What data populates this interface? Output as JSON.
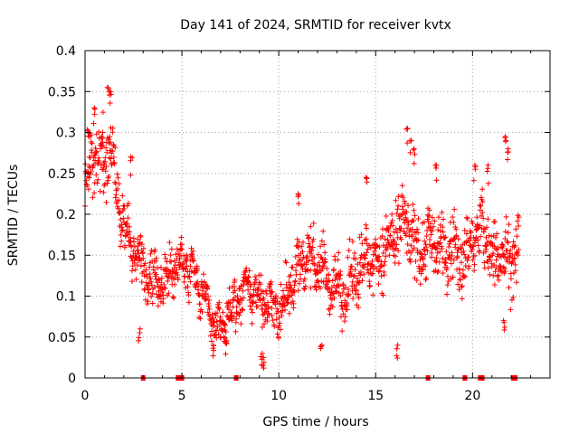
{
  "chart_data": {
    "type": "scatter",
    "title": "Day 141 of 2024, SRMTID for receiver kvtx",
    "xlabel": "GPS time / hours",
    "ylabel": "SRMTID / TECUs",
    "xlim": [
      0,
      24
    ],
    "ylim": [
      0,
      0.4
    ],
    "x_ticks": [
      0,
      5,
      10,
      15,
      20
    ],
    "x_tick_labels": [
      "0",
      "5",
      "10",
      "15",
      "20"
    ],
    "y_ticks": [
      0,
      0.05,
      0.1,
      0.15,
      0.2,
      0.25,
      0.3,
      0.35,
      0.4
    ],
    "y_tick_labels": [
      "0",
      "0.05",
      "0.1",
      "0.15",
      "0.2",
      "0.25",
      "0.3",
      "0.35",
      "0.4"
    ],
    "grid": true,
    "marker": "+",
    "color": "#ff0000",
    "series": [
      {
        "name": "SRMTID",
        "trend": [
          [
            0.0,
            0.24
          ],
          [
            0.3,
            0.26
          ],
          [
            0.6,
            0.27
          ],
          [
            1.0,
            0.26
          ],
          [
            1.3,
            0.28
          ],
          [
            1.7,
            0.21
          ],
          [
            2.2,
            0.17
          ],
          [
            2.7,
            0.15
          ],
          [
            3.2,
            0.13
          ],
          [
            3.7,
            0.12
          ],
          [
            4.2,
            0.12
          ],
          [
            4.7,
            0.14
          ],
          [
            5.2,
            0.14
          ],
          [
            5.7,
            0.12
          ],
          [
            6.2,
            0.09
          ],
          [
            6.6,
            0.07
          ],
          [
            7.0,
            0.06
          ],
          [
            7.5,
            0.08
          ],
          [
            8.0,
            0.1
          ],
          [
            8.5,
            0.11
          ],
          [
            9.0,
            0.1
          ],
          [
            9.5,
            0.09
          ],
          [
            10.0,
            0.08
          ],
          [
            10.5,
            0.11
          ],
          [
            11.0,
            0.13
          ],
          [
            11.5,
            0.15
          ],
          [
            12.0,
            0.14
          ],
          [
            12.5,
            0.12
          ],
          [
            13.0,
            0.11
          ],
          [
            13.5,
            0.11
          ],
          [
            14.0,
            0.13
          ],
          [
            14.5,
            0.15
          ],
          [
            15.0,
            0.14
          ],
          [
            15.5,
            0.16
          ],
          [
            16.0,
            0.17
          ],
          [
            16.5,
            0.19
          ],
          [
            17.0,
            0.16
          ],
          [
            17.5,
            0.16
          ],
          [
            18.0,
            0.17
          ],
          [
            18.5,
            0.15
          ],
          [
            19.0,
            0.16
          ],
          [
            19.5,
            0.14
          ],
          [
            20.0,
            0.17
          ],
          [
            20.5,
            0.18
          ],
          [
            21.0,
            0.15
          ],
          [
            21.5,
            0.15
          ],
          [
            22.0,
            0.14
          ],
          [
            22.4,
            0.16
          ]
        ],
        "spread": [
          [
            0.0,
            0.035
          ],
          [
            1.5,
            0.035
          ],
          [
            2.0,
            0.03
          ],
          [
            4.0,
            0.025
          ],
          [
            6.0,
            0.022
          ],
          [
            8.0,
            0.022
          ],
          [
            10.0,
            0.025
          ],
          [
            12.0,
            0.028
          ],
          [
            14.0,
            0.03
          ],
          [
            16.0,
            0.035
          ],
          [
            18.0,
            0.035
          ],
          [
            20.0,
            0.035
          ],
          [
            22.4,
            0.035
          ]
        ],
        "spikes": [
          [
            0.2,
            0.3
          ],
          [
            0.5,
            0.33
          ],
          [
            0.9,
            0.3
          ],
          [
            1.2,
            0.355
          ],
          [
            1.3,
            0.35
          ],
          [
            2.4,
            0.27
          ],
          [
            16.6,
            0.305
          ],
          [
            16.8,
            0.29
          ],
          [
            17.0,
            0.28
          ],
          [
            20.8,
            0.26
          ],
          [
            21.7,
            0.295
          ],
          [
            21.8,
            0.28
          ],
          [
            20.1,
            0.26
          ],
          [
            18.1,
            0.26
          ],
          [
            11.0,
            0.225
          ],
          [
            14.5,
            0.245
          ],
          [
            6.6,
            0.04
          ],
          [
            9.1,
            0.03
          ],
          [
            9.2,
            0.025
          ],
          [
            7.3,
            0.045
          ],
          [
            12.2,
            0.04
          ],
          [
            2.8,
            0.06
          ],
          [
            21.6,
            0.07
          ],
          [
            16.1,
            0.04
          ]
        ]
      }
    ],
    "data_gaps_x": [
      3.0,
      4.8,
      4.9,
      5.0,
      7.8,
      17.7,
      19.6,
      20.4,
      20.5,
      22.1,
      22.2
    ]
  }
}
